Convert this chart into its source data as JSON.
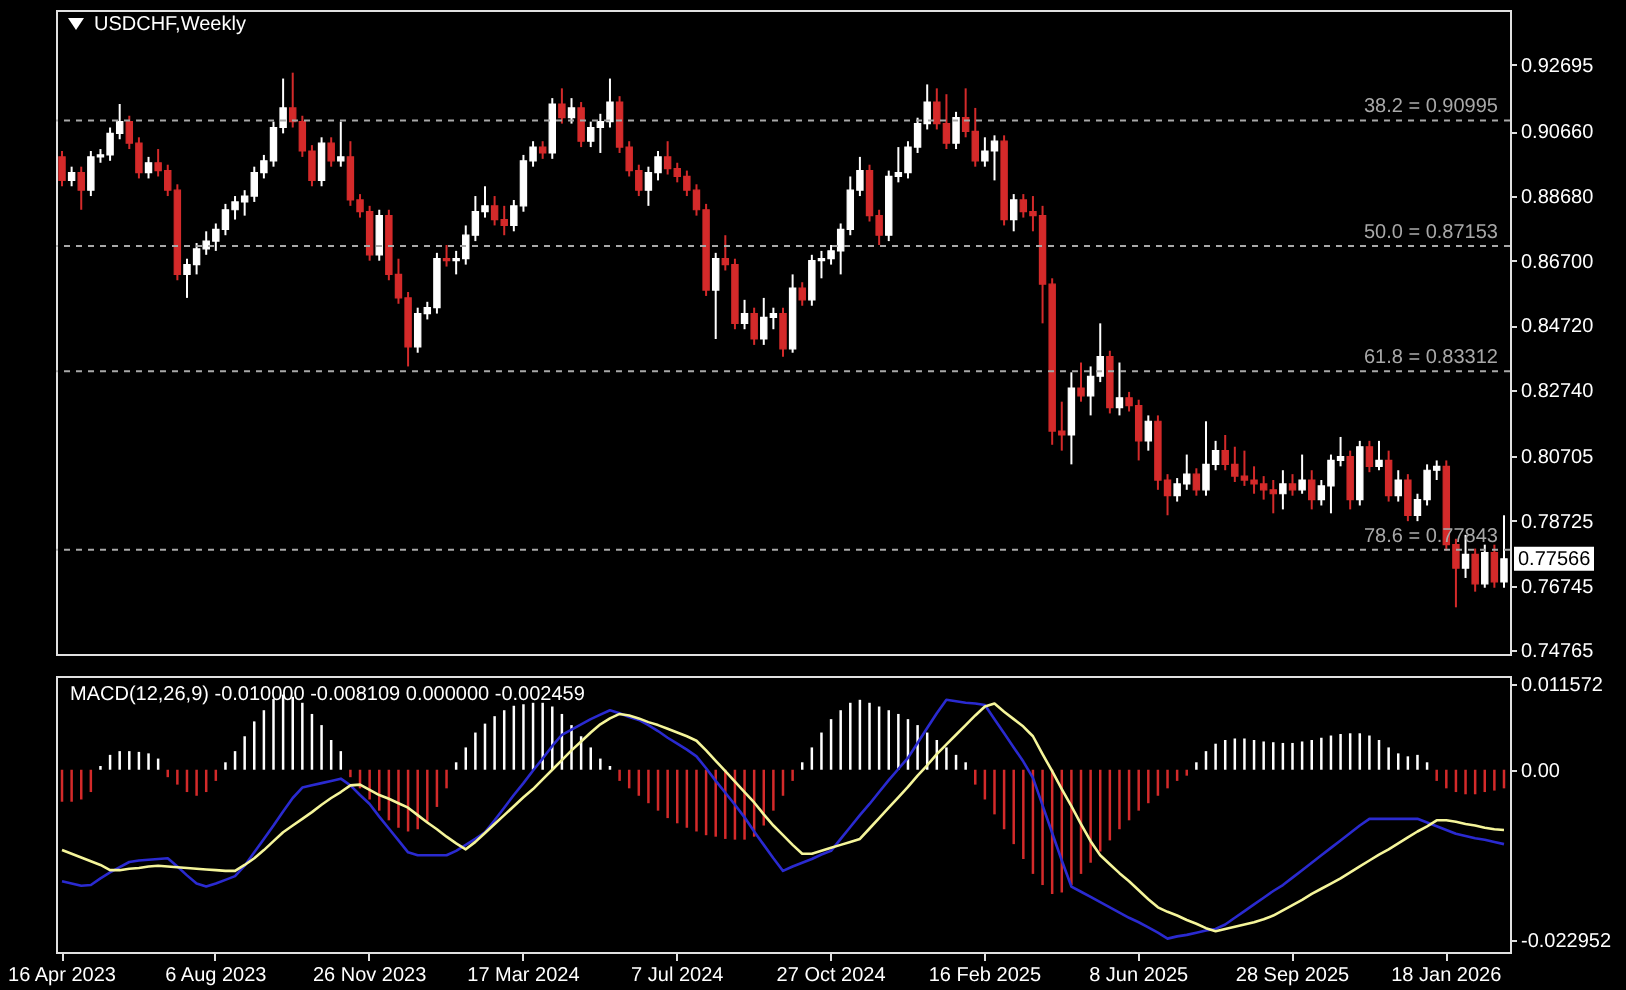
{
  "chart_data": [
    {
      "type": "candlestick",
      "title": "USDCHF,Weekly",
      "tick_labels": "y",
      "categories": [
        null,
        null,
        null,
        null,
        null,
        null,
        null,
        null,
        null,
        null,
        null,
        null,
        null,
        null,
        null,
        null,
        null,
        null,
        null,
        null,
        null,
        null,
        null,
        null,
        null,
        null,
        null,
        null,
        null,
        null,
        null,
        null,
        null,
        null,
        null,
        null,
        null,
        null,
        null,
        null,
        null,
        null,
        null,
        null,
        null,
        null,
        null,
        null,
        null,
        null,
        null,
        null,
        null,
        null,
        null,
        null,
        null,
        null,
        null,
        null,
        null,
        null,
        null,
        null,
        null,
        null,
        null,
        null,
        null,
        null,
        null,
        null,
        null,
        null,
        null,
        null,
        null,
        null,
        null,
        null,
        null,
        null,
        null,
        null,
        null,
        null,
        null,
        null,
        null,
        null,
        null,
        null,
        null,
        null,
        null,
        null,
        null,
        null,
        null,
        null,
        null,
        null,
        null,
        null,
        null,
        null,
        null,
        null,
        null,
        null,
        null,
        null,
        null,
        null,
        null,
        null,
        null,
        null,
        null,
        null,
        null,
        null,
        null,
        null,
        null,
        null,
        null,
        null,
        null,
        null,
        null,
        null,
        null,
        null,
        null,
        null,
        null,
        null,
        null,
        null,
        null,
        null,
        null,
        null,
        null,
        null,
        null,
        null,
        null,
        null,
        null
      ],
      "ohlc": [
        [
          0.8988,
          0.9006,
          0.8898,
          0.8916
        ],
        [
          0.8916,
          0.8958,
          0.8898,
          0.894
        ],
        [
          0.894,
          0.8958,
          0.8826,
          0.8886
        ],
        [
          0.8886,
          0.9006,
          0.8868,
          0.8988
        ],
        [
          0.8988,
          0.9012,
          0.897,
          0.8994
        ],
        [
          0.8994,
          0.9078,
          0.8976,
          0.906
        ],
        [
          0.906,
          0.915,
          0.9042,
          0.9096
        ],
        [
          0.9096,
          0.9114,
          0.9012,
          0.903
        ],
        [
          0.903,
          0.9048,
          0.8922,
          0.894
        ],
        [
          0.894,
          0.8988,
          0.8922,
          0.897
        ],
        [
          0.897,
          0.9012,
          0.8928,
          0.8946
        ],
        [
          0.8946,
          0.8964,
          0.8868,
          0.8886
        ],
        [
          0.8886,
          0.8904,
          0.861,
          0.8628
        ],
        [
          0.8628,
          0.8676,
          0.8556,
          0.8658
        ],
        [
          0.8658,
          0.8724,
          0.8628,
          0.8706
        ],
        [
          0.8706,
          0.876,
          0.8688,
          0.873
        ],
        [
          0.873,
          0.8784,
          0.87,
          0.8766
        ],
        [
          0.8766,
          0.8844,
          0.8748,
          0.8826
        ],
        [
          0.8826,
          0.8868,
          0.8796,
          0.885
        ],
        [
          0.885,
          0.8886,
          0.8808,
          0.8868
        ],
        [
          0.8868,
          0.8958,
          0.885,
          0.894
        ],
        [
          0.894,
          0.8994,
          0.8922,
          0.8976
        ],
        [
          0.8976,
          0.9096,
          0.8958,
          0.9078
        ],
        [
          0.9078,
          0.9228,
          0.906,
          0.9138
        ],
        [
          0.9138,
          0.9246,
          0.9078,
          0.9096
        ],
        [
          0.9096,
          0.9114,
          0.8988,
          0.9006
        ],
        [
          0.9006,
          0.9024,
          0.8898,
          0.8916
        ],
        [
          0.8916,
          0.9048,
          0.8898,
          0.903
        ],
        [
          0.903,
          0.9048,
          0.8958,
          0.8976
        ],
        [
          0.8976,
          0.9096,
          0.8958,
          0.8988
        ],
        [
          0.8988,
          0.9036,
          0.8838,
          0.8856
        ],
        [
          0.8856,
          0.8874,
          0.8802,
          0.882
        ],
        [
          0.882,
          0.8838,
          0.867,
          0.8688
        ],
        [
          0.8688,
          0.8826,
          0.867,
          0.8808
        ],
        [
          0.8808,
          0.8826,
          0.861,
          0.8628
        ],
        [
          0.8628,
          0.8676,
          0.8538,
          0.8556
        ],
        [
          0.8556,
          0.8574,
          0.8346,
          0.8406
        ],
        [
          0.8406,
          0.8526,
          0.8388,
          0.8508
        ],
        [
          0.8508,
          0.8544,
          0.849,
          0.8526
        ],
        [
          0.8526,
          0.8694,
          0.8508,
          0.8676
        ],
        [
          0.8676,
          0.8718,
          0.8652,
          0.867
        ],
        [
          0.867,
          0.87,
          0.8628,
          0.8676
        ],
        [
          0.8676,
          0.8778,
          0.8658,
          0.8748
        ],
        [
          0.8748,
          0.8868,
          0.873,
          0.882
        ],
        [
          0.882,
          0.8898,
          0.8802,
          0.8838
        ],
        [
          0.8838,
          0.8868,
          0.8778,
          0.8796
        ],
        [
          0.8796,
          0.8838,
          0.8748,
          0.8778
        ],
        [
          0.8778,
          0.8856,
          0.876,
          0.8838
        ],
        [
          0.8838,
          0.8994,
          0.882,
          0.8976
        ],
        [
          0.8976,
          0.9036,
          0.8958,
          0.9018
        ],
        [
          0.9018,
          0.9036,
          0.8982,
          0.9
        ],
        [
          0.9,
          0.9168,
          0.8982,
          0.915
        ],
        [
          0.915,
          0.9198,
          0.909,
          0.9108
        ],
        [
          0.9108,
          0.9168,
          0.909,
          0.9138
        ],
        [
          0.9138,
          0.9156,
          0.9018,
          0.9036
        ],
        [
          0.9036,
          0.9096,
          0.9018,
          0.9078
        ],
        [
          0.9078,
          0.912,
          0.9,
          0.9096
        ],
        [
          0.9096,
          0.9228,
          0.9078,
          0.9156
        ],
        [
          0.9156,
          0.9174,
          0.9,
          0.9018
        ],
        [
          0.9018,
          0.9036,
          0.8928,
          0.8946
        ],
        [
          0.8946,
          0.8964,
          0.8868,
          0.8886
        ],
        [
          0.8886,
          0.8958,
          0.8838,
          0.894
        ],
        [
          0.894,
          0.9006,
          0.8916,
          0.8988
        ],
        [
          0.8988,
          0.9036,
          0.8934,
          0.8952
        ],
        [
          0.8952,
          0.897,
          0.891,
          0.8928
        ],
        [
          0.8928,
          0.8946,
          0.8868,
          0.8886
        ],
        [
          0.8886,
          0.8904,
          0.8808,
          0.8826
        ],
        [
          0.8826,
          0.8844,
          0.8562,
          0.858
        ],
        [
          0.858,
          0.8694,
          0.843,
          0.8676
        ],
        [
          0.8676,
          0.8748,
          0.864,
          0.8658
        ],
        [
          0.8658,
          0.8676,
          0.846,
          0.8478
        ],
        [
          0.8478,
          0.855,
          0.846,
          0.8508
        ],
        [
          0.8508,
          0.8526,
          0.8412,
          0.843
        ],
        [
          0.843,
          0.8556,
          0.8412,
          0.8496
        ],
        [
          0.8496,
          0.8526,
          0.846,
          0.8508
        ],
        [
          0.8508,
          0.8526,
          0.8376,
          0.84
        ],
        [
          0.84,
          0.8628,
          0.8388,
          0.8586
        ],
        [
          0.8586,
          0.8604,
          0.8532,
          0.855
        ],
        [
          0.855,
          0.8688,
          0.8532,
          0.867
        ],
        [
          0.867,
          0.87,
          0.8616,
          0.8676
        ],
        [
          0.8676,
          0.8718,
          0.8658,
          0.87
        ],
        [
          0.87,
          0.8784,
          0.8628,
          0.8766
        ],
        [
          0.8766,
          0.8928,
          0.8748,
          0.8886
        ],
        [
          0.8886,
          0.8988,
          0.8868,
          0.8946
        ],
        [
          0.8946,
          0.8964,
          0.879,
          0.8808
        ],
        [
          0.8808,
          0.8826,
          0.8718,
          0.8748
        ],
        [
          0.8748,
          0.8946,
          0.873,
          0.8928
        ],
        [
          0.8928,
          0.9018,
          0.891,
          0.894
        ],
        [
          0.894,
          0.9036,
          0.8922,
          0.9018
        ],
        [
          0.9018,
          0.9108,
          0.9,
          0.909
        ],
        [
          0.909,
          0.921,
          0.9072,
          0.9156
        ],
        [
          0.9156,
          0.9198,
          0.9072,
          0.909
        ],
        [
          0.909,
          0.918,
          0.9012,
          0.903
        ],
        [
          0.903,
          0.9126,
          0.9012,
          0.9108
        ],
        [
          0.9108,
          0.9198,
          0.9048,
          0.9066
        ],
        [
          0.9066,
          0.9138,
          0.8958,
          0.8976
        ],
        [
          0.8976,
          0.9048,
          0.8958,
          0.9006
        ],
        [
          0.9006,
          0.9054,
          0.8916,
          0.9036
        ],
        [
          0.9036,
          0.9054,
          0.8778,
          0.8796
        ],
        [
          0.8796,
          0.8874,
          0.876,
          0.8856
        ],
        [
          0.8856,
          0.8874,
          0.8802,
          0.882
        ],
        [
          0.882,
          0.8868,
          0.876,
          0.8808
        ],
        [
          0.8808,
          0.8838,
          0.8478,
          0.8598
        ],
        [
          0.8598,
          0.8616,
          0.8106,
          0.8148
        ],
        [
          0.8148,
          0.8238,
          0.8088,
          0.8136
        ],
        [
          0.8136,
          0.8328,
          0.8046,
          0.828
        ],
        [
          0.828,
          0.8358,
          0.8238,
          0.8256
        ],
        [
          0.8256,
          0.8346,
          0.8196,
          0.8316
        ],
        [
          0.8316,
          0.8478,
          0.8298,
          0.8376
        ],
        [
          0.8376,
          0.8394,
          0.8202,
          0.822
        ],
        [
          0.822,
          0.8358,
          0.8196,
          0.825
        ],
        [
          0.825,
          0.8268,
          0.8208,
          0.8226
        ],
        [
          0.8226,
          0.8244,
          0.8058,
          0.8118
        ],
        [
          0.8118,
          0.8196,
          0.8088,
          0.8178
        ],
        [
          0.8178,
          0.8196,
          0.7968,
          0.7998
        ],
        [
          0.7998,
          0.8016,
          0.789,
          0.795
        ],
        [
          0.795,
          0.8004,
          0.7932,
          0.7986
        ],
        [
          0.7986,
          0.8076,
          0.7968,
          0.8016
        ],
        [
          0.8016,
          0.8034,
          0.795,
          0.7968
        ],
        [
          0.7968,
          0.8178,
          0.795,
          0.8046
        ],
        [
          0.8046,
          0.8118,
          0.8028,
          0.8088
        ],
        [
          0.8088,
          0.8136,
          0.8028,
          0.8046
        ],
        [
          0.8046,
          0.81,
          0.7992,
          0.801
        ],
        [
          0.801,
          0.8088,
          0.798,
          0.7998
        ],
        [
          0.7998,
          0.804,
          0.7956,
          0.7986
        ],
        [
          0.7986,
          0.801,
          0.7938,
          0.7968
        ],
        [
          0.7968,
          0.7998,
          0.7896,
          0.7956
        ],
        [
          0.7956,
          0.8028,
          0.7908,
          0.7986
        ],
        [
          0.7986,
          0.8016,
          0.795,
          0.7968
        ],
        [
          0.7968,
          0.8076,
          0.7956,
          0.7998
        ],
        [
          0.7998,
          0.8028,
          0.7908,
          0.7938
        ],
        [
          0.7938,
          0.7998,
          0.792,
          0.798
        ],
        [
          0.798,
          0.8076,
          0.7896,
          0.8058
        ],
        [
          0.8058,
          0.813,
          0.804,
          0.807
        ],
        [
          0.807,
          0.8088,
          0.7908,
          0.7938
        ],
        [
          0.7938,
          0.8118,
          0.792,
          0.81
        ],
        [
          0.81,
          0.8118,
          0.8022,
          0.804
        ],
        [
          0.804,
          0.8118,
          0.8028,
          0.8058
        ],
        [
          0.8058,
          0.8088,
          0.7932,
          0.795
        ],
        [
          0.795,
          0.8028,
          0.7932,
          0.7998
        ],
        [
          0.7998,
          0.8016,
          0.7872,
          0.789
        ],
        [
          0.789,
          0.7956,
          0.7872,
          0.7938
        ],
        [
          0.7938,
          0.8046,
          0.792,
          0.8028
        ],
        [
          0.8028,
          0.8058,
          0.7998,
          0.804
        ],
        [
          0.804,
          0.8058,
          0.7782,
          0.78
        ],
        [
          0.78,
          0.7818,
          0.7608,
          0.7728
        ],
        [
          0.7728,
          0.783,
          0.7698,
          0.777
        ],
        [
          0.777,
          0.7788,
          0.7656,
          0.768
        ],
        [
          0.768,
          0.78,
          0.7668,
          0.7776
        ],
        [
          0.7776,
          0.78,
          0.7668,
          0.7686
        ],
        [
          0.7686,
          0.789,
          0.7668,
          0.77566
        ]
      ],
      "colors": [
        "#d42a2a",
        "#ffffff",
        "#d42a2a",
        "#ffffff",
        "#ffffff",
        "#ffffff",
        "#ffffff",
        "#d42a2a",
        "#d42a2a",
        "#ffffff",
        "#d42a2a",
        "#d42a2a",
        "#d42a2a",
        "#ffffff",
        "#ffffff",
        "#ffffff",
        "#ffffff",
        "#ffffff",
        "#ffffff",
        "#ffffff",
        "#ffffff",
        "#ffffff",
        "#ffffff",
        "#ffffff",
        "#d42a2a",
        "#d42a2a",
        "#d42a2a",
        "#ffffff",
        "#d42a2a",
        "#ffffff",
        "#d42a2a",
        "#d42a2a",
        "#d42a2a",
        "#ffffff",
        "#d42a2a",
        "#d42a2a",
        "#d42a2a",
        "#ffffff",
        "#ffffff",
        "#ffffff",
        "#d42a2a",
        "#ffffff",
        "#ffffff",
        "#ffffff",
        "#ffffff",
        "#d42a2a",
        "#d42a2a",
        "#ffffff",
        "#ffffff",
        "#ffffff",
        "#d42a2a",
        "#ffffff",
        "#d42a2a",
        "#ffffff",
        "#d42a2a",
        "#ffffff",
        "#ffffff",
        "#ffffff",
        "#d42a2a",
        "#d42a2a",
        "#d42a2a",
        "#ffffff",
        "#ffffff",
        "#d42a2a",
        "#d42a2a",
        "#d42a2a",
        "#d42a2a",
        "#d42a2a",
        "#ffffff",
        "#d42a2a",
        "#d42a2a",
        "#ffffff",
        "#d42a2a",
        "#ffffff",
        "#ffffff",
        "#d42a2a",
        "#ffffff",
        "#d42a2a",
        "#ffffff",
        "#ffffff",
        "#ffffff",
        "#ffffff",
        "#ffffff",
        "#ffffff",
        "#d42a2a",
        "#d42a2a",
        "#ffffff",
        "#ffffff",
        "#ffffff",
        "#ffffff",
        "#ffffff",
        "#d42a2a",
        "#d42a2a",
        "#ffffff",
        "#d42a2a",
        "#d42a2a",
        "#ffffff",
        "#ffffff",
        "#d42a2a",
        "#ffffff",
        "#d42a2a",
        "#d42a2a",
        "#d42a2a",
        "#d42a2a",
        "#d42a2a",
        "#ffffff",
        "#d42a2a",
        "#ffffff",
        "#ffffff",
        "#d42a2a",
        "#ffffff",
        "#d42a2a",
        "#d42a2a",
        "#ffffff",
        "#d42a2a",
        "#d42a2a",
        "#ffffff",
        "#ffffff",
        "#d42a2a",
        "#ffffff",
        "#ffffff",
        "#d42a2a",
        "#d42a2a",
        "#d42a2a",
        "#d42a2a",
        "#d42a2a",
        "#d42a2a",
        "#ffffff",
        "#d42a2a",
        "#ffffff",
        "#d42a2a",
        "#ffffff",
        "#ffffff",
        "#ffffff",
        "#d42a2a",
        "#ffffff",
        "#d42a2a",
        "#ffffff",
        "#d42a2a",
        "#ffffff",
        "#d42a2a",
        "#ffffff",
        "#ffffff",
        "#ffffff",
        "#d42a2a",
        "#d42a2a",
        "#ffffff",
        "#d42a2a",
        "#ffffff",
        "#d42a2a",
        "#ffffff"
      ],
      "ylim": [
        0.7465,
        0.9438
      ],
      "yticks": [
        0.92695,
        {
          "value": 0.9066,
          "label": "0.90660"
        },
        {
          "value": 0.8868,
          "label": "0.88680"
        },
        {
          "value": 0.867,
          "label": "0.86700"
        },
        {
          "value": 0.8472,
          "label": "0.84720"
        },
        {
          "value": 0.8274,
          "label": "0.82740"
        },
        0.80705,
        0.78725,
        0.76745,
        0.74765
      ],
      "ref_lines": [
        {
          "axis": "y",
          "value": 0.90995,
          "label": "38.2 = 0.90995",
          "color": "#a8a8a8",
          "line_style": "dashed"
        },
        {
          "axis": "y",
          "value": 0.87153,
          "label": "50.0 = 0.87153",
          "color": "#a8a8a8",
          "line_style": "dashed"
        },
        {
          "axis": "y",
          "value": 0.83312,
          "label": "61.8 = 0.83312",
          "color": "#a8a8a8",
          "line_style": "dashed"
        },
        {
          "axis": "y",
          "value": 0.77843,
          "label": "78.6 = 0.77843",
          "color": "#a8a8a8",
          "line_style": "dashed"
        }
      ],
      "annotations": [
        "0.77566"
      ]
    },
    {
      "type": "bar",
      "title": "MACD(12,26,9) -0.010000 -0.008109 0.000000 -0.002459",
      "categories": [
        "16 Apr 2023",
        null,
        null,
        null,
        null,
        null,
        null,
        null,
        null,
        null,
        null,
        null,
        null,
        null,
        null,
        null,
        "6 Aug 2023",
        null,
        null,
        null,
        null,
        null,
        null,
        null,
        null,
        null,
        null,
        null,
        null,
        null,
        null,
        null,
        "26 Nov 2023",
        null,
        null,
        null,
        null,
        null,
        null,
        null,
        null,
        null,
        null,
        null,
        null,
        null,
        null,
        null,
        "17 Mar 2024",
        null,
        null,
        null,
        null,
        null,
        null,
        null,
        null,
        null,
        null,
        null,
        null,
        null,
        null,
        null,
        "7 Jul 2024",
        null,
        null,
        null,
        null,
        null,
        null,
        null,
        null,
        null,
        null,
        null,
        null,
        null,
        null,
        null,
        "27 Oct 2024",
        null,
        null,
        null,
        null,
        null,
        null,
        null,
        null,
        null,
        null,
        null,
        null,
        null,
        null,
        null,
        "16 Feb 2025",
        null,
        null,
        null,
        null,
        null,
        null,
        null,
        null,
        null,
        null,
        null,
        null,
        null,
        null,
        null,
        "8 Jun 2025",
        null,
        null,
        null,
        null,
        null,
        null,
        null,
        null,
        null,
        null,
        null,
        null,
        null,
        null,
        null,
        "28 Sep 2025",
        null,
        null,
        null,
        null,
        null,
        null,
        null,
        null,
        null,
        null,
        null,
        null,
        null,
        null,
        null,
        "18 Jan 2026",
        null,
        null,
        null,
        null,
        null,
        null
      ],
      "ylim": [
        -0.0245,
        0.0126
      ],
      "yticks": [
        0.011572,
        {
          "value": 0,
          "label": "0.00"
        },
        -0.022952
      ],
      "series": [
        {
          "color": "#ffffff",
          "values": [
            null,
            null,
            null,
            null,
            0.0005,
            0.002,
            0.0025,
            0.0025,
            0.0024,
            0.0022,
            0.0015,
            null,
            null,
            null,
            null,
            null,
            null,
            0.001,
            0.0025,
            0.0045,
            0.0065,
            0.008,
            0.0095,
            0.0101,
            0.0098,
            0.009,
            0.0075,
            0.006,
            0.004,
            0.0025,
            null,
            null,
            null,
            null,
            null,
            null,
            null,
            null,
            null,
            null,
            null,
            0.001,
            0.003,
            0.005,
            0.0062,
            0.0072,
            0.008,
            0.0086,
            0.0088,
            0.009,
            0.009,
            0.0085,
            0.0075,
            0.006,
            0.0045,
            0.003,
            0.0015,
            0.0005,
            null,
            null,
            null,
            null,
            null,
            null,
            null,
            null,
            null,
            null,
            null,
            null,
            null,
            null,
            null,
            null,
            null,
            null,
            null,
            0.001,
            0.003,
            0.005,
            0.0068,
            0.008,
            0.009,
            0.0094,
            0.009,
            0.0085,
            0.008,
            0.0075,
            0.0068,
            0.006,
            0.005,
            0.004,
            0.003,
            0.002,
            0.001,
            null,
            null,
            null,
            null,
            null,
            null,
            null,
            null,
            null,
            null,
            null,
            null,
            null,
            null,
            null,
            null,
            null,
            null,
            null,
            null,
            null,
            null,
            null,
            0.001,
            0.0025,
            0.0035,
            0.004,
            0.0042,
            0.0042,
            0.004,
            0.0038,
            0.0037,
            0.0036,
            0.0036,
            0.0038,
            0.004,
            0.0043,
            0.0046,
            0.0048,
            0.0049,
            0.0049,
            0.0046,
            0.004,
            0.003,
            0.0022,
            0.0018,
            0.002,
            0.001,
            null,
            null,
            null,
            null,
            null,
            null,
            null,
            null
          ]
        },
        {
          "color": "#d42a2a",
          "values": [
            -0.0043,
            -0.0043,
            -0.004,
            -0.003,
            null,
            null,
            null,
            null,
            null,
            null,
            null,
            -0.001,
            -0.002,
            -0.003,
            -0.0035,
            -0.003,
            -0.0015,
            null,
            null,
            null,
            null,
            null,
            null,
            null,
            null,
            null,
            null,
            null,
            null,
            null,
            -0.001,
            -0.0025,
            -0.004,
            -0.0055,
            -0.0068,
            -0.0078,
            -0.0083,
            -0.008,
            -0.007,
            -0.005,
            -0.0025,
            null,
            null,
            null,
            null,
            null,
            null,
            null,
            null,
            null,
            null,
            null,
            null,
            null,
            null,
            null,
            null,
            null,
            -0.0015,
            -0.0025,
            -0.0035,
            -0.0045,
            -0.0055,
            -0.0065,
            -0.0072,
            -0.0078,
            -0.0083,
            -0.0088,
            -0.009,
            -0.0093,
            -0.0094,
            -0.0094,
            -0.009,
            -0.0075,
            -0.0055,
            -0.0035,
            -0.0015,
            null,
            null,
            null,
            null,
            null,
            null,
            null,
            null,
            null,
            null,
            null,
            null,
            null,
            null,
            null,
            null,
            null,
            null,
            -0.002,
            -0.004,
            -0.006,
            -0.008,
            -0.01,
            -0.012,
            -0.014,
            -0.0155,
            -0.0167,
            -0.0165,
            -0.0155,
            -0.014,
            -0.0125,
            -0.011,
            -0.0095,
            -0.008,
            -0.0068,
            -0.0055,
            -0.0045,
            -0.0035,
            -0.0025,
            -0.0015,
            -0.0008,
            null,
            null,
            null,
            null,
            null,
            null,
            null,
            null,
            null,
            null,
            null,
            null,
            null,
            null,
            null,
            null,
            null,
            null,
            null,
            null,
            null,
            null,
            null,
            null,
            null,
            -0.0015,
            -0.0025,
            -0.003,
            -0.0033,
            -0.0033,
            -0.003,
            -0.0028,
            -0.0025
          ]
        },
        {
          "type": "line",
          "color": "#2a2ad0",
          "values": [
            -0.015,
            -0.0153,
            -0.0156,
            -0.0155,
            -0.0146,
            -0.0138,
            -0.0131,
            -0.0124,
            -0.0122,
            -0.0121,
            -0.012,
            -0.0119,
            -0.013,
            -0.0142,
            -0.0153,
            -0.0157,
            -0.0153,
            -0.0148,
            -0.0143,
            -0.0129,
            -0.0111,
            -0.0093,
            -0.0075,
            -0.0056,
            -0.0038,
            -0.0024,
            -0.0021,
            -0.0018,
            -0.0015,
            -0.0012,
            -0.0021,
            -0.0034,
            -0.0046,
            -0.0063,
            -0.0079,
            -0.0095,
            -0.0111,
            -0.0115,
            -0.0115,
            -0.0115,
            -0.0115,
            -0.0109,
            -0.0101,
            -0.0093,
            -0.0084,
            -0.0068,
            -0.0051,
            -0.0034,
            -0.0018,
            -0.0001,
            0.0015,
            0.0032,
            0.0047,
            0.0054,
            0.0061,
            0.0068,
            0.0074,
            0.008,
            0.0076,
            0.0071,
            0.0067,
            0.006,
            0.0052,
            0.0043,
            0.0035,
            0.0027,
            0.0018,
            0.0002,
            -0.0015,
            -0.0031,
            -0.0047,
            -0.0064,
            -0.0083,
            -0.0101,
            -0.0119,
            -0.0136,
            -0.013,
            -0.0125,
            -0.012,
            -0.0114,
            -0.0109,
            -0.0093,
            -0.0077,
            -0.0061,
            -0.0046,
            -0.003,
            -0.0014,
            0.0001,
            0.0016,
            0.0036,
            0.0056,
            0.0076,
            0.0094,
            0.0092,
            0.009,
            0.0089,
            0.0087,
            0.0068,
            0.0049,
            0.003,
            0.0011,
            -0.0011,
            -0.0048,
            -0.0085,
            -0.0122,
            -0.0157,
            -0.0164,
            -0.0171,
            -0.0178,
            -0.0185,
            -0.0192,
            -0.0199,
            -0.0205,
            -0.0212,
            -0.0219,
            -0.0227,
            -0.0224,
            -0.0222,
            -0.0219,
            -0.0216,
            -0.0214,
            -0.0208,
            -0.0199,
            -0.019,
            -0.0181,
            -0.0172,
            -0.0163,
            -0.0155,
            -0.0145,
            -0.0135,
            -0.0125,
            -0.0115,
            -0.0105,
            -0.0095,
            -0.0085,
            -0.0075,
            -0.0066,
            -0.0066,
            -0.0066,
            -0.0066,
            -0.0066,
            -0.0066,
            -0.0071,
            -0.0076,
            -0.0081,
            -0.0086,
            -0.0089,
            -0.0092,
            -0.0094,
            -0.0097,
            -0.01
          ]
        },
        {
          "type": "line",
          "color": "#f5f59a",
          "values": [
            -0.0108,
            -0.0113,
            -0.0118,
            -0.0123,
            -0.0128,
            -0.0135,
            -0.0135,
            -0.0133,
            -0.0132,
            -0.013,
            -0.0129,
            -0.013,
            -0.0131,
            -0.0132,
            -0.0133,
            -0.0134,
            -0.0135,
            -0.0136,
            -0.0136,
            -0.0128,
            -0.0119,
            -0.0108,
            -0.0096,
            -0.0084,
            -0.0075,
            -0.0066,
            -0.0057,
            -0.0047,
            -0.0038,
            -0.003,
            -0.0021,
            -0.002,
            -0.0027,
            -0.0034,
            -0.0039,
            -0.0045,
            -0.0051,
            -0.0061,
            -0.0071,
            -0.008,
            -0.009,
            -0.0099,
            -0.0107,
            -0.0097,
            -0.0085,
            -0.0073,
            -0.0061,
            -0.0049,
            -0.0037,
            -0.0026,
            -0.0013,
            0,
            0.0013,
            0.0026,
            0.0038,
            0.005,
            0.0061,
            0.0069,
            0.0075,
            0.0073,
            0.0069,
            0.0064,
            0.006,
            0.0055,
            0.005,
            0.0045,
            0.0039,
            0.0026,
            0.0012,
            -0.0002,
            -0.0016,
            -0.003,
            -0.0044,
            -0.006,
            -0.0075,
            -0.0088,
            -0.0101,
            -0.0113,
            -0.0113,
            -0.0109,
            -0.0105,
            -0.0101,
            -0.0097,
            -0.0093,
            -0.0079,
            -0.0065,
            -0.0051,
            -0.0037,
            -0.0023,
            -0.0008,
            0.0006,
            0.0021,
            0.0034,
            0.0047,
            0.006,
            0.0073,
            0.0085,
            0.0089,
            0.0078,
            0.0068,
            0.0058,
            0.0045,
            0.0021,
            -0.0002,
            -0.0026,
            -0.0049,
            -0.0073,
            -0.0096,
            -0.0115,
            -0.0127,
            -0.0139,
            -0.015,
            -0.0162,
            -0.0174,
            -0.0185,
            -0.0191,
            -0.0196,
            -0.0202,
            -0.0207,
            -0.0213,
            -0.0217,
            -0.0214,
            -0.0211,
            -0.0208,
            -0.0205,
            -0.0201,
            -0.0196,
            -0.0189,
            -0.0182,
            -0.0175,
            -0.0167,
            -0.016,
            -0.0153,
            -0.0146,
            -0.0138,
            -0.013,
            -0.0122,
            -0.0114,
            -0.0107,
            -0.0099,
            -0.0091,
            -0.0083,
            -0.0076,
            -0.0068,
            -0.0068,
            -0.007,
            -0.0073,
            -0.0075,
            -0.0078,
            -0.008,
            -0.0081
          ]
        }
      ]
    }
  ]
}
